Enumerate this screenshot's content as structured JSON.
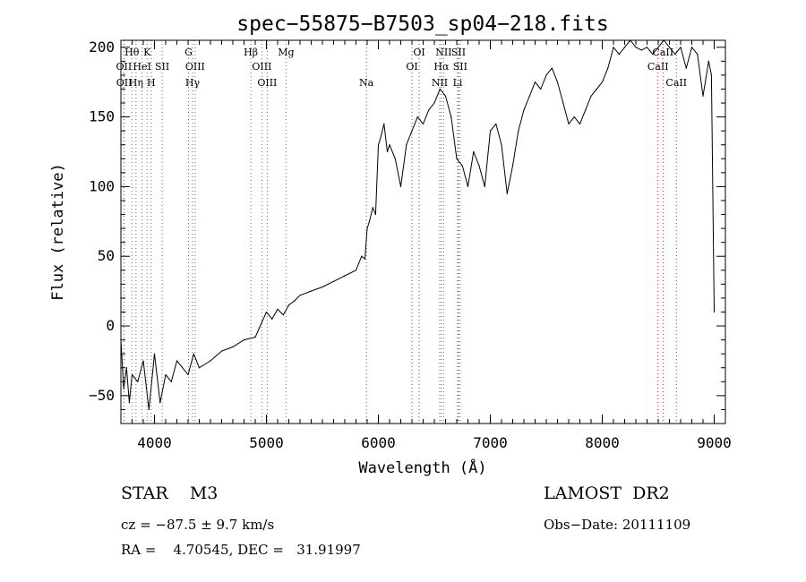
{
  "chart_data": {
    "type": "line",
    "title": "spec−55875−B7503_sp04−218.fits",
    "xlabel": "Wavelength (Å)",
    "ylabel": "Flux (relative)",
    "xlim": [
      3700,
      9100
    ],
    "ylim": [
      -70,
      205
    ],
    "xticks": [
      4000,
      5000,
      6000,
      7000,
      8000,
      9000
    ],
    "yticks": [
      -50,
      0,
      50,
      100,
      150,
      200
    ],
    "grid": false,
    "series": [
      {
        "x": [
          3700,
          3725,
          3750,
          3775,
          3800,
          3850,
          3900,
          3950,
          4000,
          4050,
          4100,
          4150,
          4200,
          4250,
          4300,
          4350,
          4400,
          4500,
          4600,
          4700,
          4800,
          4900,
          5000,
          5050,
          5100,
          5150,
          5200,
          5250,
          5300,
          5400,
          5500,
          5600,
          5700,
          5800,
          5850,
          5880,
          5900,
          5920,
          5950,
          5975,
          6000,
          6020,
          6050,
          6080,
          6100,
          6150,
          6200,
          6250,
          6300,
          6350,
          6400,
          6450,
          6500,
          6550,
          6600,
          6650,
          6700,
          6750,
          6800,
          6850,
          6900,
          6950,
          7000,
          7050,
          7100,
          7150,
          7200,
          7250,
          7300,
          7350,
          7400,
          7450,
          7500,
          7550,
          7600,
          7650,
          7700,
          7750,
          7800,
          7850,
          7900,
          7950,
          8000,
          8050,
          8100,
          8150,
          8200,
          8250,
          8300,
          8350,
          8400,
          8450,
          8500,
          8550,
          8600,
          8650,
          8700,
          8750,
          8800,
          8850,
          8900,
          8950,
          8975,
          9000
        ],
        "y": [
          -10,
          -45,
          -30,
          -55,
          -35,
          -40,
          -25,
          -60,
          -20,
          -55,
          -35,
          -40,
          -25,
          -30,
          -35,
          -20,
          -30,
          -25,
          -18,
          -15,
          -10,
          -8,
          10,
          5,
          12,
          8,
          15,
          18,
          22,
          25,
          28,
          32,
          36,
          40,
          50,
          48,
          70,
          75,
          85,
          80,
          130,
          135,
          145,
          125,
          130,
          120,
          100,
          130,
          140,
          150,
          145,
          155,
          160,
          170,
          165,
          150,
          120,
          115,
          100,
          125,
          115,
          100,
          140,
          145,
          130,
          95,
          115,
          140,
          155,
          165,
          175,
          170,
          180,
          185,
          175,
          160,
          145,
          150,
          145,
          155,
          165,
          170,
          175,
          185,
          200,
          195,
          200,
          205,
          200,
          198,
          200,
          195,
          200,
          205,
          200,
          195,
          200,
          185,
          200,
          195,
          165,
          190,
          180,
          10
        ]
      }
    ],
    "line_marks": [
      {
        "label": "Hθ",
        "x": 3798,
        "row": 1
      },
      {
        "label": "K",
        "x": 3934,
        "row": 1
      },
      {
        "label": "G",
        "x": 4304,
        "row": 1
      },
      {
        "label": "Hβ",
        "x": 4861,
        "row": 1
      },
      {
        "label": "Mg",
        "x": 5175,
        "row": 1
      },
      {
        "label": "OI",
        "x": 6364,
        "row": 1
      },
      {
        "label": "NII",
        "x": 6583,
        "row": 1
      },
      {
        "label": "SII",
        "x": 6716,
        "row": 1
      },
      {
        "label": "CaII",
        "x": 8542,
        "row": 1
      },
      {
        "label": "OII",
        "x": 3727,
        "row": 2
      },
      {
        "label": "HeI",
        "x": 3889,
        "row": 2
      },
      {
        "label": "SII",
        "x": 4069,
        "row": 2
      },
      {
        "label": "OIII",
        "x": 4363,
        "row": 2
      },
      {
        "label": "OIII",
        "x": 4959,
        "row": 2
      },
      {
        "label": "OI",
        "x": 6300,
        "row": 2
      },
      {
        "label": "Hα",
        "x": 6563,
        "row": 2
      },
      {
        "label": "SII",
        "x": 6731,
        "row": 2
      },
      {
        "label": "CaII",
        "x": 8498,
        "row": 2
      },
      {
        "label": "OII",
        "x": 3729,
        "row": 3
      },
      {
        "label": "Hη",
        "x": 3835,
        "row": 3
      },
      {
        "label": "H",
        "x": 3970,
        "row": 3
      },
      {
        "label": "Hγ",
        "x": 4340,
        "row": 3
      },
      {
        "label": "OIII",
        "x": 5007,
        "row": 3
      },
      {
        "label": "Na",
        "x": 5893,
        "row": 3
      },
      {
        "label": "NII",
        "x": 6548,
        "row": 3
      },
      {
        "label": "Li",
        "x": 6708,
        "row": 3
      },
      {
        "label": "CaII",
        "x": 8662,
        "row": 3
      }
    ]
  },
  "info": {
    "object_class": "STAR    M3",
    "survey": "LAMOST  DR2",
    "redshift": "cz = −87.5 ± 9.7 km/s",
    "obs_date": "Obs−Date: 20111109",
    "coords": "RA =    4.70545, DEC =   31.91997"
  }
}
